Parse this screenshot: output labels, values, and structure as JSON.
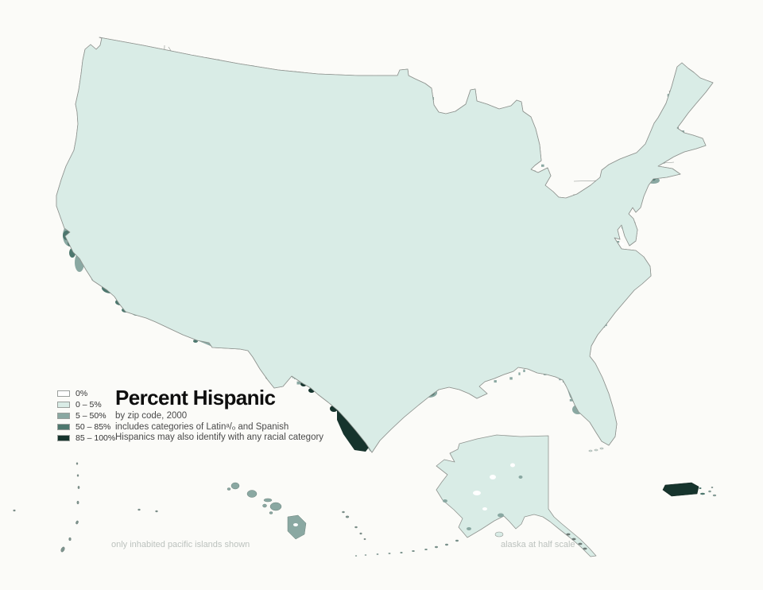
{
  "title": "Percent Hispanic",
  "subtitle_lines": [
    "by zip code, 2000",
    "includes categories of Latinᵃ/ₒ and Spanish",
    "Hispanics may also identify with any racial category"
  ],
  "notes": {
    "pacific": "only inhabited pacific islands shown",
    "alaska": "alaska at half scale"
  },
  "legend": {
    "items": [
      {
        "label": "0%",
        "color": "#ffffff"
      },
      {
        "label": "0 – 5%",
        "color": "#d9ece6"
      },
      {
        "label": "5 – 50%",
        "color": "#8aa8a2"
      },
      {
        "label": "50 – 85%",
        "color": "#4d776e"
      },
      {
        "label": "85 – 100%",
        "color": "#16342d"
      }
    ]
  },
  "map": {
    "background": "#fbfbf8",
    "boundary_color": "#8f938f",
    "state_line_color": "#8c918d"
  },
  "chart_data": {
    "type": "choropleth",
    "measure": "Percent Hispanic by zip code, 2000",
    "bins": [
      {
        "label": "0%",
        "color": "#ffffff"
      },
      {
        "label": "0 – 5%",
        "color": "#d9ece6"
      },
      {
        "label": "5 – 50%",
        "color": "#8aa8a2"
      },
      {
        "label": "50 – 85%",
        "color": "#4d776e"
      },
      {
        "label": "85 – 100%",
        "color": "#16342d"
      }
    ]
  }
}
